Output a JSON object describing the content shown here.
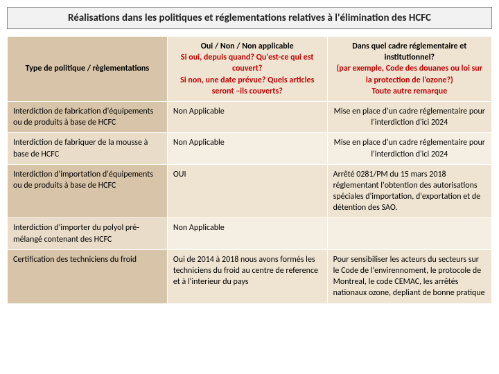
{
  "title": "Réalisations dans les politiques et réglementations relatives à l'élimination des HCFC",
  "headers": {
    "col1": "Type de politique / règlementations",
    "col2_line1": "Oui / Non / Non applicable",
    "col2_rest": "Si oui, depuis quand? Qu'est-ce qui est couvert?\nSi non, une date prévue? Quels articles seront –ils couverts?",
    "col3_line1": "Dans quel cadre réglementaire et institutionnel?",
    "col3_rest": "(par exemple, Code des douanes ou loi sur la protection de l'ozone?)\nToute autre remarque"
  },
  "rows": [
    {
      "c1": "Interdiction de fabrication d'équipements ou de produits à base de HCFC",
      "c2": "Non Applicable",
      "c3": "Mise en place d'un cadre réglementaire pour l'interdiction d'ici 2024",
      "c3_center": true
    },
    {
      "c1": "Interdiction de fabriquer de la mousse à base de HCFC",
      "c2": "Non Applicable",
      "c3": "Mise en place d'un cadre réglementaire pour l'interdiction d'ici 2024",
      "c3_center": true
    },
    {
      "c1": "Interdiction d'importation d'équipements ou de produits à base de HCFC",
      "c2": "OUI",
      "c3": "Arrêté 0281/PM du 15 mars 2018 réglementant l'obtention des autorisations spéciales d'importation, d'exportation et de détention des SAO.",
      "c3_center": false
    },
    {
      "c1": "Interdiction d'importer du polyol pré-mélangé contenant des HCFC",
      "c2": "Non Applicable",
      "c3": "",
      "c3_center": false
    },
    {
      "c1": "Certification des techniciens du froid",
      "c2": "Oui de 2014 à 2018 nous avons formés les techniciens du froid au centre de reference et à l'interieur du pays",
      "c3": "Pour sensibiliser les acteurs du secteurs sur le Code de l'envirennoment, le protocole de Montreal, le code CEMAC, les arrêtés nationaux ozone, depliant de bonne pratique",
      "c3_center": false
    }
  ]
}
